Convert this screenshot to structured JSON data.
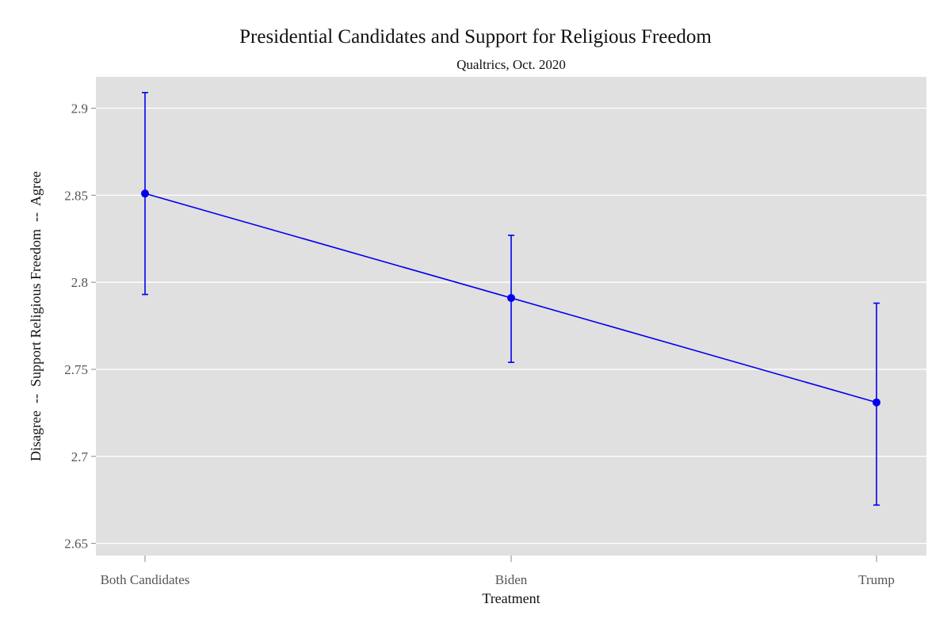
{
  "chart_data": {
    "type": "line",
    "title": "Presidential Candidates and Support for Religious Freedom",
    "subtitle": "Qualtrics, Oct. 2020",
    "xlabel": "Treatment",
    "ylabel": "Disagree  --  Support Religious Freedom  --  Agree",
    "categories": [
      "Both Candidates",
      "Biden",
      "Trump"
    ],
    "series": [
      {
        "values": [
          2.851,
          2.791,
          2.731
        ],
        "ci_low": [
          2.793,
          2.754,
          2.672
        ],
        "ci_high": [
          2.909,
          2.827,
          2.788
        ],
        "color": "#0000ee"
      }
    ],
    "y_ticks": [
      "2.65",
      "2.7",
      "2.75",
      "2.8",
      "2.85",
      "2.9"
    ],
    "ylim": [
      2.643,
      2.918
    ],
    "grid": true,
    "legend": "none",
    "panel_color": "#e0e0e0"
  }
}
